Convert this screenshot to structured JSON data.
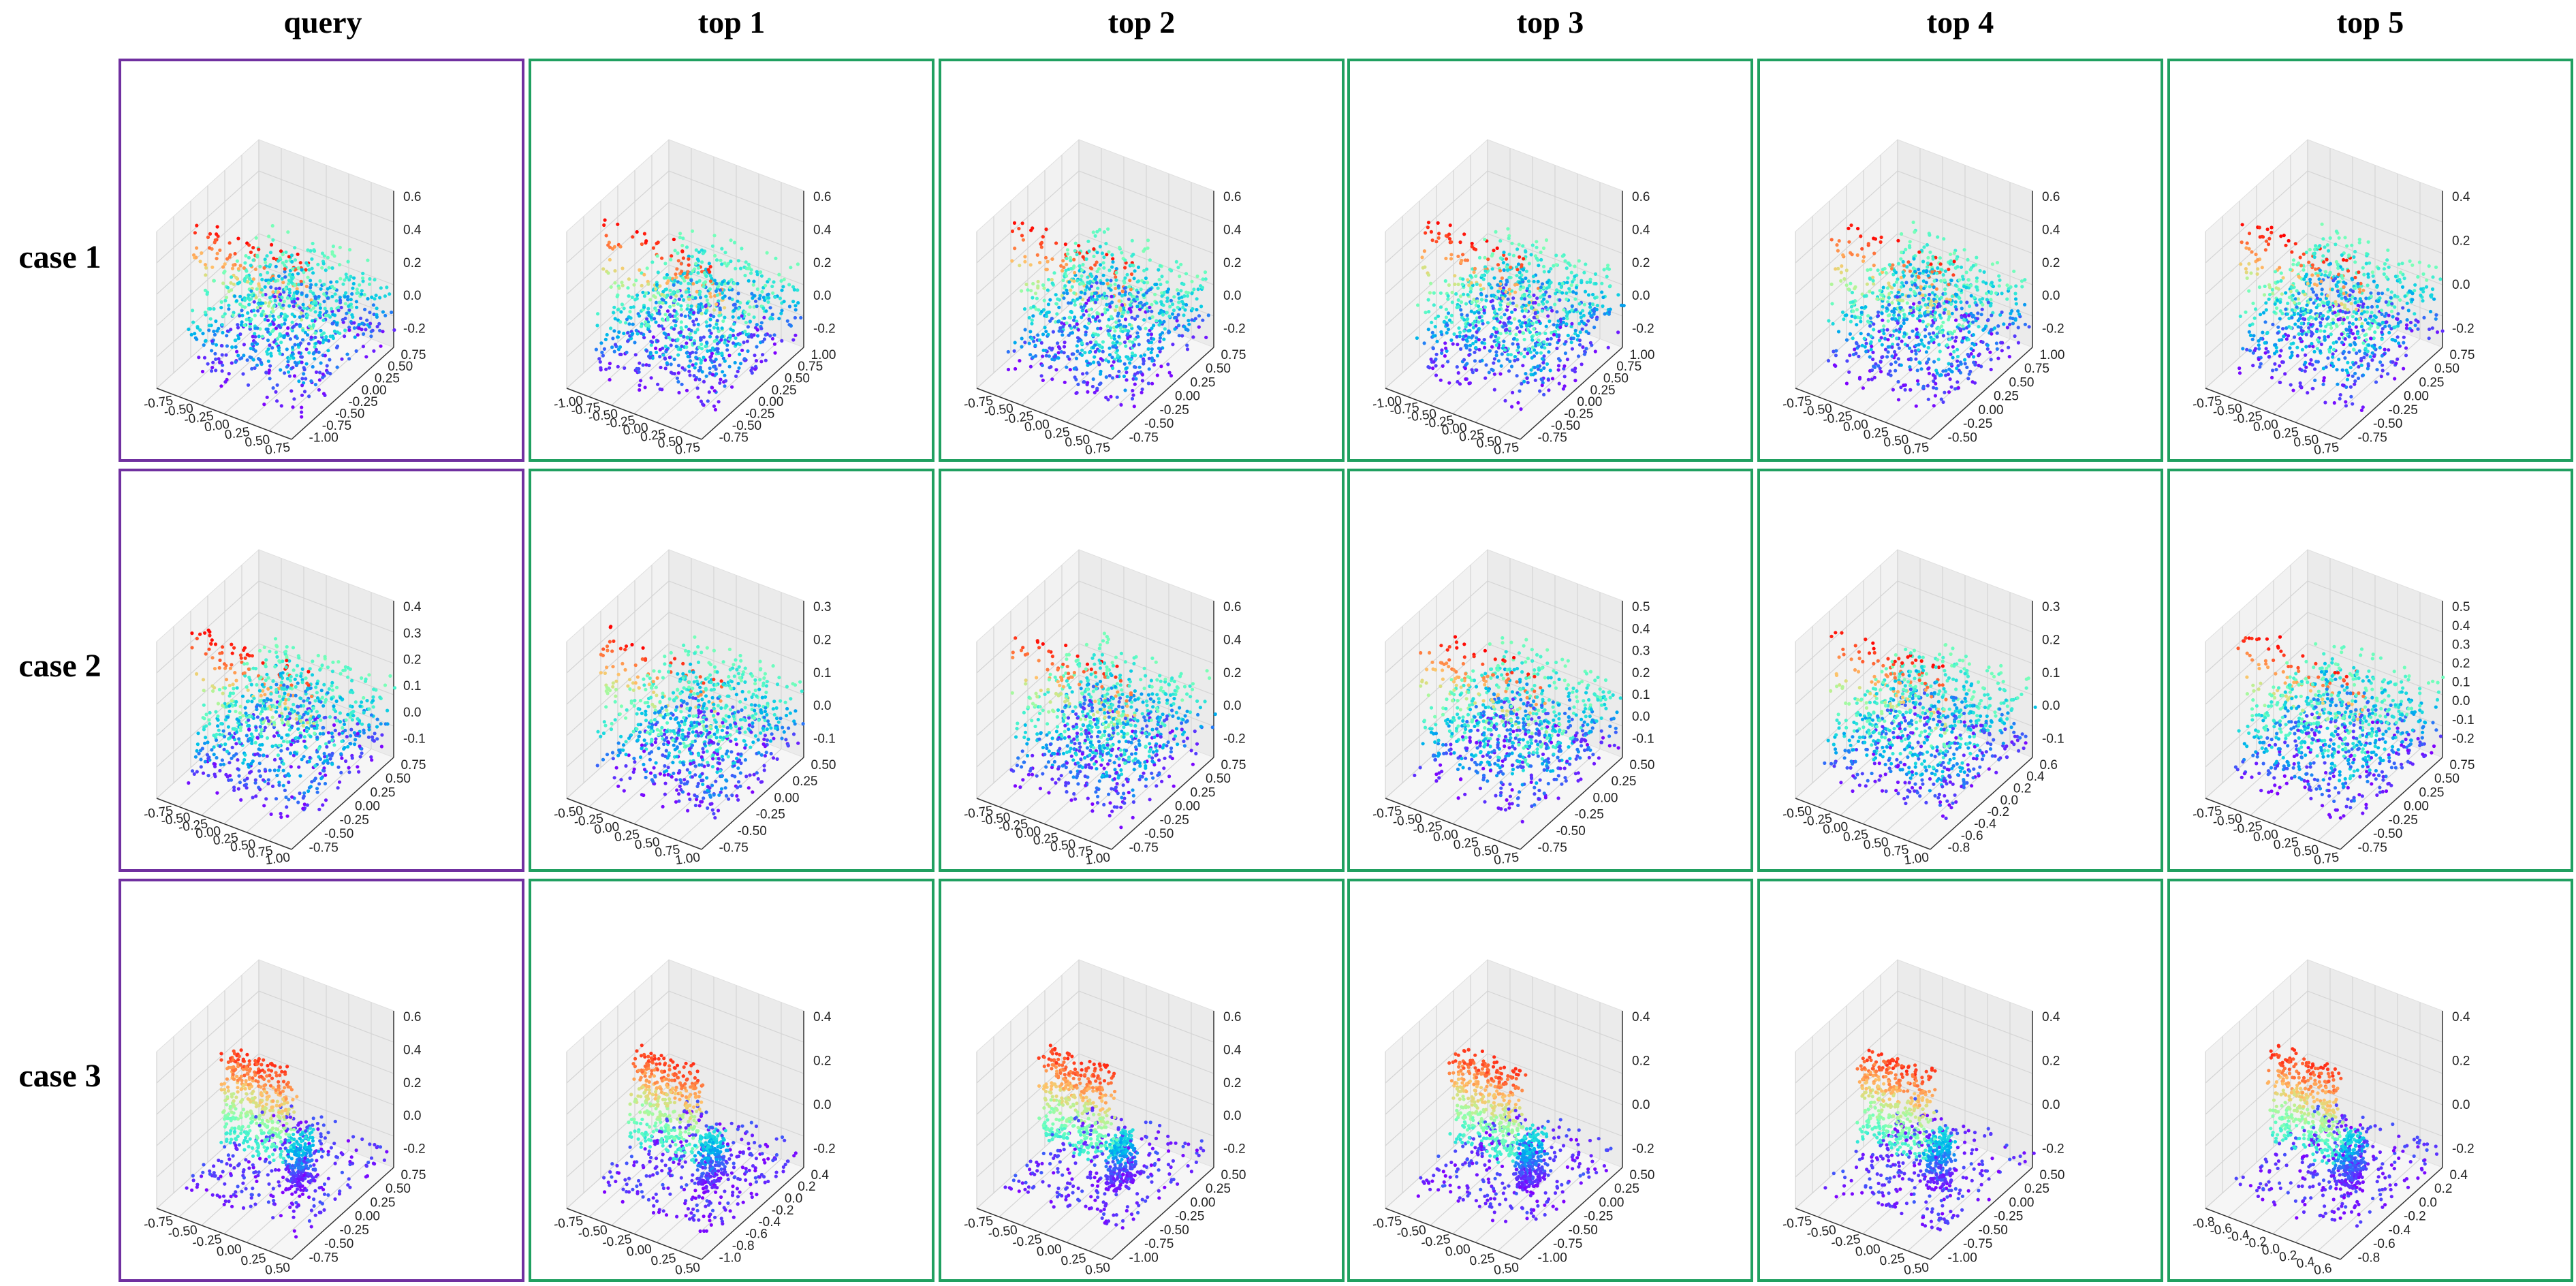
{
  "column_headers": [
    "query",
    "top 1",
    "top 2",
    "top 3",
    "top 4",
    "top 5"
  ],
  "row_headers": [
    "case 1",
    "case 2",
    "case 3"
  ],
  "colors": {
    "query_border": "#7030a0",
    "result_border": "#20a060",
    "colormap": "rainbow"
  },
  "chart_data": [
    {
      "type": "scatter",
      "case": "case 1",
      "column": "query",
      "x_ticks": [
        "-0.75",
        "-0.50",
        "-0.25",
        "0.00",
        "0.25",
        "0.50",
        "0.75"
      ],
      "y_ticks": [
        "-1.00",
        "-0.75",
        "-0.50",
        "-0.25",
        "0.00",
        "0.25",
        "0.50",
        "0.75"
      ],
      "z_ticks": [
        "-0.2",
        "0.0",
        "0.2",
        "0.4",
        "0.6"
      ]
    },
    {
      "type": "scatter",
      "case": "case 1",
      "column": "top 1",
      "x_ticks": [
        "-1.00",
        "-0.75",
        "-0.50",
        "-0.25",
        "0.00",
        "0.25",
        "0.50",
        "0.75"
      ],
      "y_ticks": [
        "-0.75",
        "-0.50",
        "-0.25",
        "0.00",
        "0.25",
        "0.50",
        "0.75",
        "1.00"
      ],
      "z_ticks": [
        "-0.2",
        "0.0",
        "0.2",
        "0.4",
        "0.6"
      ]
    },
    {
      "type": "scatter",
      "case": "case 1",
      "column": "top 2",
      "x_ticks": [
        "-0.75",
        "-0.50",
        "-0.25",
        "0.00",
        "0.25",
        "0.50",
        "0.75"
      ],
      "y_ticks": [
        "-0.75",
        "-0.50",
        "-0.25",
        "0.00",
        "0.25",
        "0.50",
        "0.75"
      ],
      "z_ticks": [
        "-0.2",
        "0.0",
        "0.2",
        "0.4",
        "0.6"
      ]
    },
    {
      "type": "scatter",
      "case": "case 1",
      "column": "top 3",
      "x_ticks": [
        "-1.00",
        "-0.75",
        "-0.50",
        "-0.25",
        "0.00",
        "0.25",
        "0.50",
        "0.75"
      ],
      "y_ticks": [
        "-0.75",
        "-0.50",
        "-0.25",
        "0.00",
        "0.25",
        "0.50",
        "0.75",
        "1.00"
      ],
      "z_ticks": [
        "-0.2",
        "0.0",
        "0.2",
        "0.4",
        "0.6"
      ]
    },
    {
      "type": "scatter",
      "case": "case 1",
      "column": "top 4",
      "x_ticks": [
        "-0.75",
        "-0.50",
        "-0.25",
        "0.00",
        "0.25",
        "0.50",
        "0.75"
      ],
      "y_ticks": [
        "-0.50",
        "-0.25",
        "0.00",
        "0.25",
        "0.50",
        "0.75",
        "1.00"
      ],
      "z_ticks": [
        "-0.2",
        "0.0",
        "0.2",
        "0.4",
        "0.6"
      ]
    },
    {
      "type": "scatter",
      "case": "case 1",
      "column": "top 5",
      "x_ticks": [
        "-0.75",
        "-0.50",
        "-0.25",
        "0.00",
        "0.25",
        "0.50",
        "0.75"
      ],
      "y_ticks": [
        "-0.75",
        "-0.50",
        "-0.25",
        "0.00",
        "0.25",
        "0.50",
        "0.75"
      ],
      "z_ticks": [
        "-0.2",
        "0.0",
        "0.2",
        "0.4"
      ]
    },
    {
      "type": "scatter",
      "case": "case 2",
      "column": "query",
      "x_ticks": [
        "-0.75",
        "-0.50",
        "-0.25",
        "0.00",
        "0.25",
        "0.50",
        "0.75",
        "1.00"
      ],
      "y_ticks": [
        "-0.75",
        "-0.50",
        "-0.25",
        "0.00",
        "0.25",
        "0.50",
        "0.75"
      ],
      "z_ticks": [
        "-0.1",
        "0.0",
        "0.1",
        "0.2",
        "0.3",
        "0.4"
      ]
    },
    {
      "type": "scatter",
      "case": "case 2",
      "column": "top 1",
      "x_ticks": [
        "-0.50",
        "-0.25",
        "0.00",
        "0.25",
        "0.50",
        "0.75",
        "1.00"
      ],
      "y_ticks": [
        "-0.75",
        "-0.50",
        "-0.25",
        "0.00",
        "0.25",
        "0.50"
      ],
      "z_ticks": [
        "-0.1",
        "0.0",
        "0.1",
        "0.2",
        "0.3"
      ]
    },
    {
      "type": "scatter",
      "case": "case 2",
      "column": "top 2",
      "x_ticks": [
        "-0.75",
        "-0.50",
        "-0.25",
        "0.00",
        "0.25",
        "0.50",
        "0.75",
        "1.00"
      ],
      "y_ticks": [
        "-0.75",
        "-0.50",
        "-0.25",
        "0.00",
        "0.25",
        "0.50",
        "0.75"
      ],
      "z_ticks": [
        "-0.2",
        "0.0",
        "0.2",
        "0.4",
        "0.6"
      ]
    },
    {
      "type": "scatter",
      "case": "case 2",
      "column": "top 3",
      "x_ticks": [
        "-0.75",
        "-0.50",
        "-0.25",
        "0.00",
        "0.25",
        "0.50",
        "0.75"
      ],
      "y_ticks": [
        "-0.75",
        "-0.50",
        "-0.25",
        "0.00",
        "0.25",
        "0.50"
      ],
      "z_ticks": [
        "-0.1",
        "0.0",
        "0.1",
        "0.2",
        "0.3",
        "0.4",
        "0.5"
      ]
    },
    {
      "type": "scatter",
      "case": "case 2",
      "column": "top 4",
      "x_ticks": [
        "-0.50",
        "-0.25",
        "0.00",
        "0.25",
        "0.50",
        "0.75",
        "1.00"
      ],
      "y_ticks": [
        "-0.8",
        "-0.6",
        "-0.4",
        "-0.2",
        "0.0",
        "0.2",
        "0.4",
        "0.6"
      ],
      "z_ticks": [
        "-0.1",
        "0.0",
        "0.1",
        "0.2",
        "0.3"
      ]
    },
    {
      "type": "scatter",
      "case": "case 2",
      "column": "top 5",
      "x_ticks": [
        "-0.75",
        "-0.50",
        "-0.25",
        "0.00",
        "0.25",
        "0.50",
        "0.75"
      ],
      "y_ticks": [
        "-0.75",
        "-0.50",
        "-0.25",
        "0.00",
        "0.25",
        "0.50",
        "0.75"
      ],
      "z_ticks": [
        "-0.2",
        "-0.1",
        "0.0",
        "0.1",
        "0.2",
        "0.3",
        "0.4",
        "0.5"
      ]
    },
    {
      "type": "scatter",
      "case": "case 3",
      "column": "query",
      "x_ticks": [
        "-0.75",
        "-0.50",
        "-0.25",
        "0.00",
        "0.25",
        "0.50"
      ],
      "y_ticks": [
        "-0.75",
        "-0.50",
        "-0.25",
        "0.00",
        "0.25",
        "0.50",
        "0.75"
      ],
      "z_ticks": [
        "-0.2",
        "0.0",
        "0.2",
        "0.4",
        "0.6"
      ]
    },
    {
      "type": "scatter",
      "case": "case 3",
      "column": "top 1",
      "x_ticks": [
        "-0.75",
        "-0.50",
        "-0.25",
        "0.00",
        "0.25",
        "0.50"
      ],
      "y_ticks": [
        "-1.0",
        "-0.8",
        "-0.6",
        "-0.4",
        "-0.2",
        "0.0",
        "0.2",
        "0.4"
      ],
      "z_ticks": [
        "-0.2",
        "0.0",
        "0.2",
        "0.4"
      ]
    },
    {
      "type": "scatter",
      "case": "case 3",
      "column": "top 2",
      "x_ticks": [
        "-0.75",
        "-0.50",
        "-0.25",
        "0.00",
        "0.25",
        "0.50"
      ],
      "y_ticks": [
        "-1.00",
        "-0.75",
        "-0.50",
        "-0.25",
        "0.00",
        "0.25",
        "0.50"
      ],
      "z_ticks": [
        "-0.2",
        "0.0",
        "0.2",
        "0.4",
        "0.6"
      ]
    },
    {
      "type": "scatter",
      "case": "case 3",
      "column": "top 3",
      "x_ticks": [
        "-0.75",
        "-0.50",
        "-0.25",
        "0.00",
        "0.25",
        "0.50"
      ],
      "y_ticks": [
        "-1.00",
        "-0.75",
        "-0.50",
        "-0.25",
        "0.00",
        "0.25",
        "0.50"
      ],
      "z_ticks": [
        "-0.2",
        "0.0",
        "0.2",
        "0.4"
      ]
    },
    {
      "type": "scatter",
      "case": "case 3",
      "column": "top 4",
      "x_ticks": [
        "-0.75",
        "-0.50",
        "-0.25",
        "0.00",
        "0.25",
        "0.50"
      ],
      "y_ticks": [
        "-1.00",
        "-0.75",
        "-0.50",
        "-0.25",
        "0.00",
        "0.25",
        "0.50"
      ],
      "z_ticks": [
        "-0.2",
        "0.0",
        "0.2",
        "0.4"
      ]
    },
    {
      "type": "scatter",
      "case": "case 3",
      "column": "top 5",
      "x_ticks": [
        "-0.8",
        "-0.6",
        "-0.4",
        "-0.2",
        "0.0",
        "0.2",
        "0.4",
        "0.6"
      ],
      "y_ticks": [
        "-0.8",
        "-0.6",
        "-0.4",
        "-0.2",
        "0.0",
        "0.2",
        "0.4"
      ],
      "z_ticks": [
        "-0.2",
        "0.0",
        "0.2",
        "0.4"
      ]
    }
  ]
}
